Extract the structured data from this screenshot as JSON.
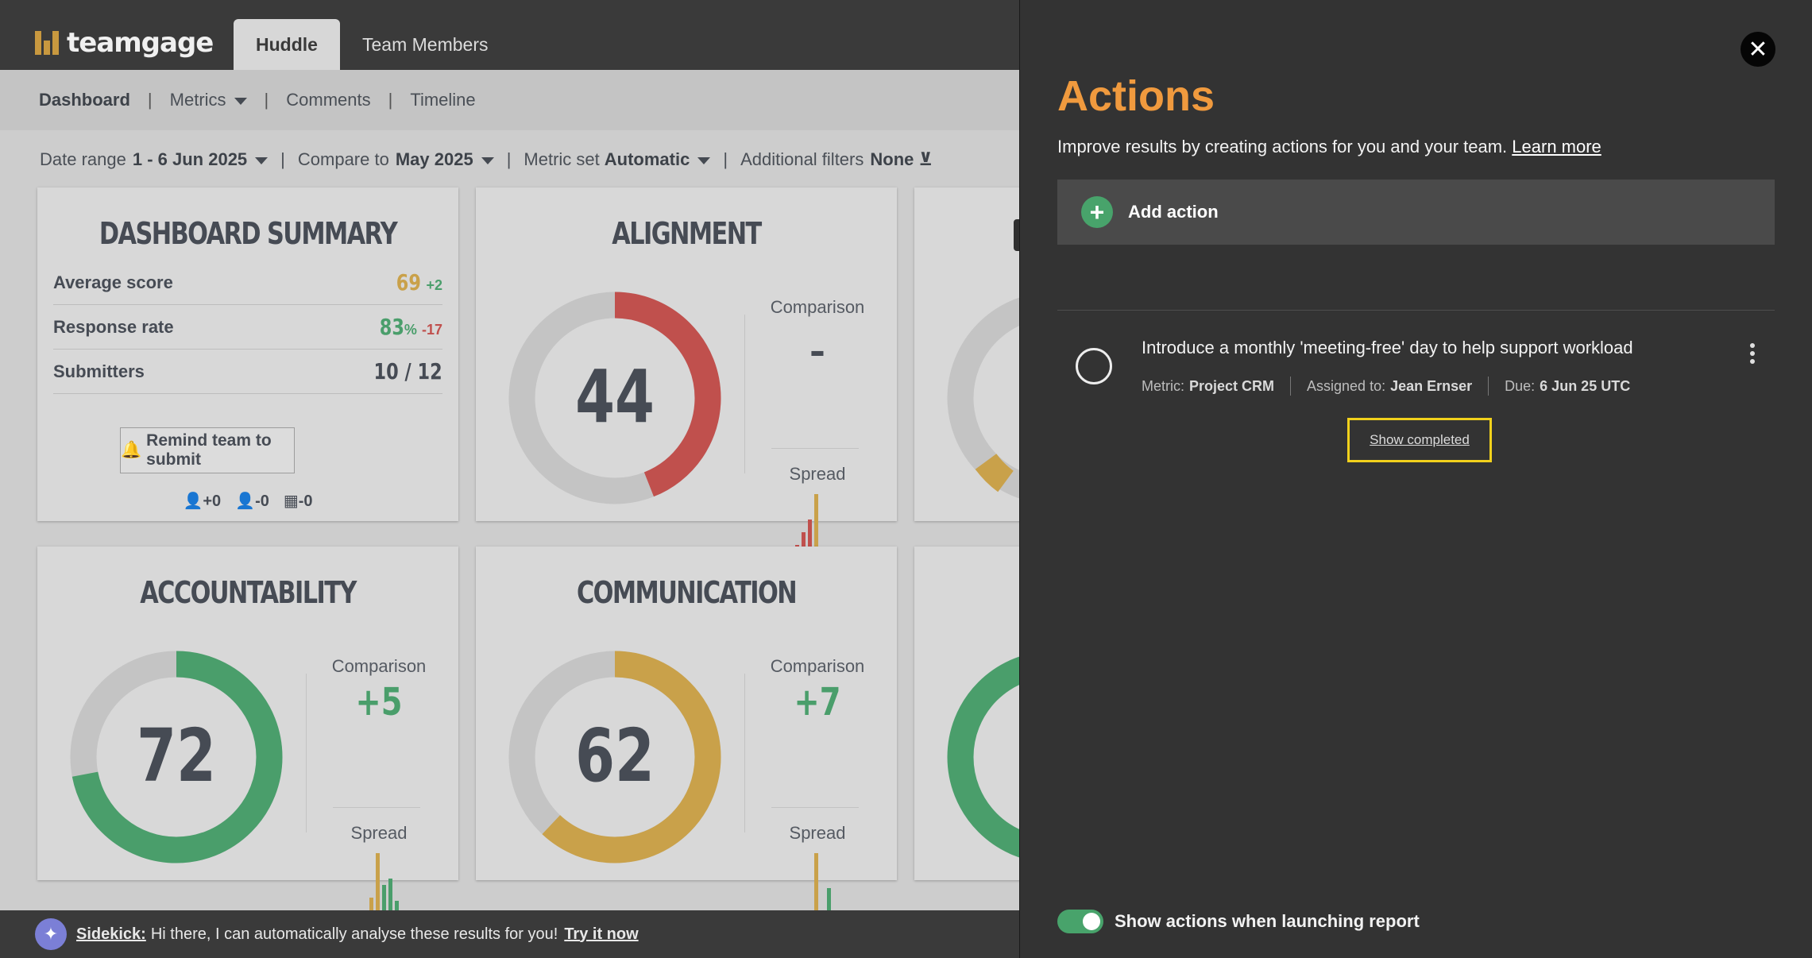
{
  "app": {
    "logo_text": "teamgage",
    "tabs": [
      {
        "label": "Huddle"
      },
      {
        "label": "Team Members"
      }
    ]
  },
  "subnav": {
    "items": [
      {
        "label": "Dashboard"
      },
      {
        "label": "Metrics"
      },
      {
        "label": "Comments"
      },
      {
        "label": "Timeline"
      }
    ]
  },
  "filters": {
    "date_range_label": "Date range",
    "date_range_value": "1 - 6 Jun 2025",
    "compare_label": "Compare to",
    "compare_value": "May 2025",
    "metric_set_label": "Metric set",
    "metric_set_value": "Automatic",
    "additional_label": "Additional filters",
    "additional_value": "None"
  },
  "summary": {
    "title": "DASHBOARD SUMMARY",
    "rows": [
      {
        "label": "Average score",
        "value": "69",
        "delta": "+2"
      },
      {
        "label": "Response rate",
        "value": "83",
        "unit": "%",
        "delta": "-17"
      },
      {
        "label": "Submitters",
        "value": "10 / 12"
      }
    ],
    "remind_label": "Remind team to submit",
    "counts": [
      "+0",
      "-0",
      "-0"
    ]
  },
  "metrics": [
    {
      "title": "ALIGNMENT",
      "score": "44",
      "fraction": 0.44,
      "color": "#c0504d",
      "comparison_label": "Comparison",
      "comparison": "–",
      "spread_label": "Spread"
    },
    {
      "title": "ACCOUNTABILITY",
      "score": "72",
      "fraction": 0.72,
      "color": "#4a9e6b",
      "comparison_label": "Comparison",
      "comparison": "+5",
      "spread_label": "Spread"
    },
    {
      "title": "COMMUNICATION",
      "score": "62",
      "fraction": 0.62,
      "color": "#c9a14a",
      "comparison_label": "Comparison",
      "comparison": "+7",
      "spread_label": "Spread"
    }
  ],
  "sidekick": {
    "name": "Sidekick:",
    "message": "Hi there, I can automatically analyse these results for you!",
    "cta": "Try it now"
  },
  "panel": {
    "title": "Actions",
    "subtitle": "Improve results by creating actions for you and your team.",
    "learn_more": "Learn more",
    "add_action": "Add action",
    "action": {
      "title": "Introduce a monthly 'meeting-free' day to help support workload",
      "metric_label": "Metric:",
      "metric": "Project CRM",
      "assigned_label": "Assigned to:",
      "assigned": "Jean Ernser",
      "due_label": "Due:",
      "due": "6 Jun 25 UTC"
    },
    "show_completed": "Show completed",
    "toggle_label": "Show actions when launching report",
    "toggle_on": true
  },
  "colors": {
    "accent": "#f09a3e",
    "green": "#48a36b",
    "red": "#c0504d",
    "gold": "#c9a14a"
  }
}
